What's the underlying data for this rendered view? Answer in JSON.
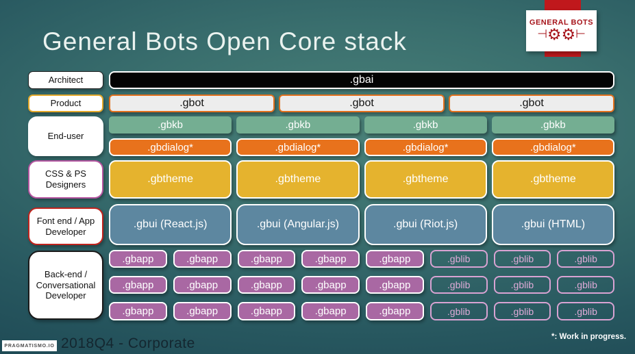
{
  "slide": {
    "title": "General Bots Open Core stack",
    "footer_caption": "2018Q4 - Corporate",
    "footnote": "*: Work in progress.",
    "brand_small": "PRAGMATISMO.IO"
  },
  "logo": {
    "name": "GENERAL BOTS",
    "gear": "⚙",
    "tack_left": "⊣",
    "tack_right": "⊢"
  },
  "labels": {
    "architect": "Architect",
    "product": "Product",
    "end_user": "End-user",
    "designers": "CSS & PS Designers",
    "frontend": "Font end / App Developer",
    "backend": "Back-end / Conversational Developer"
  },
  "stack": {
    "gbai": ".gbai",
    "gbot": [
      ".gbot",
      ".gbot",
      ".gbot"
    ],
    "gbkb": [
      ".gbkb",
      ".gbkb",
      ".gbkb",
      ".gbkb"
    ],
    "gbdialog": [
      ".gbdialog*",
      ".gbdialog*",
      ".gbdialog*",
      ".gbdialog*"
    ],
    "gbtheme": [
      ".gbtheme",
      ".gbtheme",
      ".gbtheme",
      ".gbtheme"
    ],
    "gbui": [
      ".gbui (React.js)",
      ".gbui (Angular.js)",
      ".gbui (Riot.js)",
      ".gbui (HTML)"
    ],
    "backend_rows": [
      {
        "gbapp": [
          ".gbapp",
          ".gbapp",
          ".gbapp",
          ".gbapp",
          ".gbapp"
        ],
        "gblib": [
          ".gblib",
          ".gblib",
          ".gblib"
        ]
      },
      {
        "gbapp": [
          ".gbapp",
          ".gbapp",
          ".gbapp",
          ".gbapp",
          ".gbapp"
        ],
        "gblib": [
          ".gblib",
          ".gblib",
          ".gblib"
        ]
      },
      {
        "gbapp": [
          ".gbapp",
          ".gbapp",
          ".gbapp",
          ".gbapp",
          ".gbapp"
        ],
        "gblib": [
          ".gblib",
          ".gblib",
          ".gblib"
        ]
      }
    ]
  },
  "colors": {
    "background_center": "#4a8179",
    "background_edge": "#183f4d",
    "gbai_black": "#040404",
    "gbot_fill": "#ededed",
    "gbot_border_orange": "#e2701d",
    "gbkb_green": "#74ae92",
    "gbdialog_orange": "#e8721c",
    "gbtheme_yellow": "#e5b32e",
    "gbui_blue": "#5d87a0",
    "gbapp_purple": "#a968a3",
    "gblib_pink": "#d9a3d3",
    "designers_border": "#b455a0",
    "frontend_border": "#c0231d",
    "product_border": "#e3a82a",
    "logo_red": "#c0181c",
    "logo_text_red": "#a6131a"
  }
}
